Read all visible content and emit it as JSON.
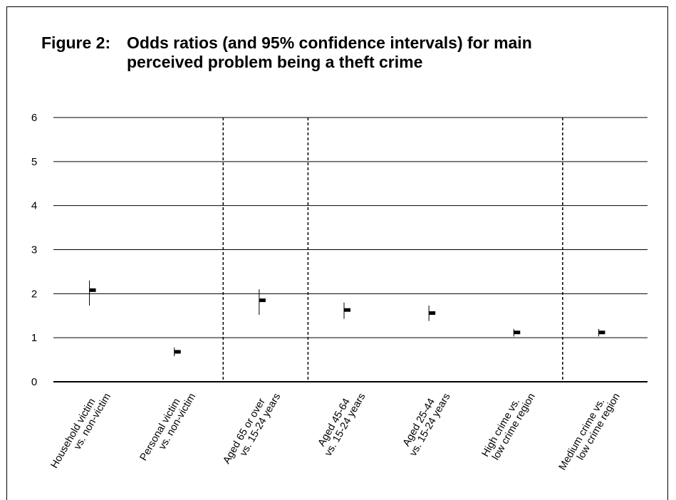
{
  "chart_data": {
    "type": "scatter",
    "title": "Figure 2:   Odds ratios (and 95% confidence intervals) for main\nperceived problem being a theft crime",
    "title_parts": {
      "label": "Figure 2:",
      "text": "Odds ratios (and 95% confidence intervals) for main\nperceived problem being a theft crime"
    },
    "xlabel": "",
    "ylabel": "",
    "ylim": [
      0,
      6
    ],
    "yticks": [
      "0",
      "1",
      "2",
      "3",
      "4",
      "5",
      "6"
    ],
    "grid": true,
    "categories": [
      [
        "Household victim",
        "vs. non-victim"
      ],
      [
        "Personal victim",
        "vs. non-victim"
      ],
      [
        "Aged 65 or over",
        "vs. 15-24 years"
      ],
      [
        "Aged 45-64",
        "vs. 15-24 years"
      ],
      [
        "Aged 25-44",
        "vs. 15-24 years"
      ],
      [
        "High crime vs.",
        "low crime region"
      ],
      [
        "Medium crime vs.",
        "low crime region"
      ]
    ],
    "series": [
      {
        "estimate": [
          2.08,
          0.68,
          1.85,
          1.63,
          1.56,
          1.12,
          1.12
        ],
        "lower": [
          1.73,
          0.58,
          1.52,
          1.43,
          1.38,
          1.03,
          1.03
        ],
        "upper": [
          2.3,
          0.78,
          2.1,
          1.8,
          1.73,
          1.2,
          1.2
        ]
      }
    ],
    "group_dividers_after": [
      1,
      2,
      5
    ],
    "colors": {
      "marker": "#000000",
      "grid": "#000000",
      "dividers": "#000000"
    }
  }
}
